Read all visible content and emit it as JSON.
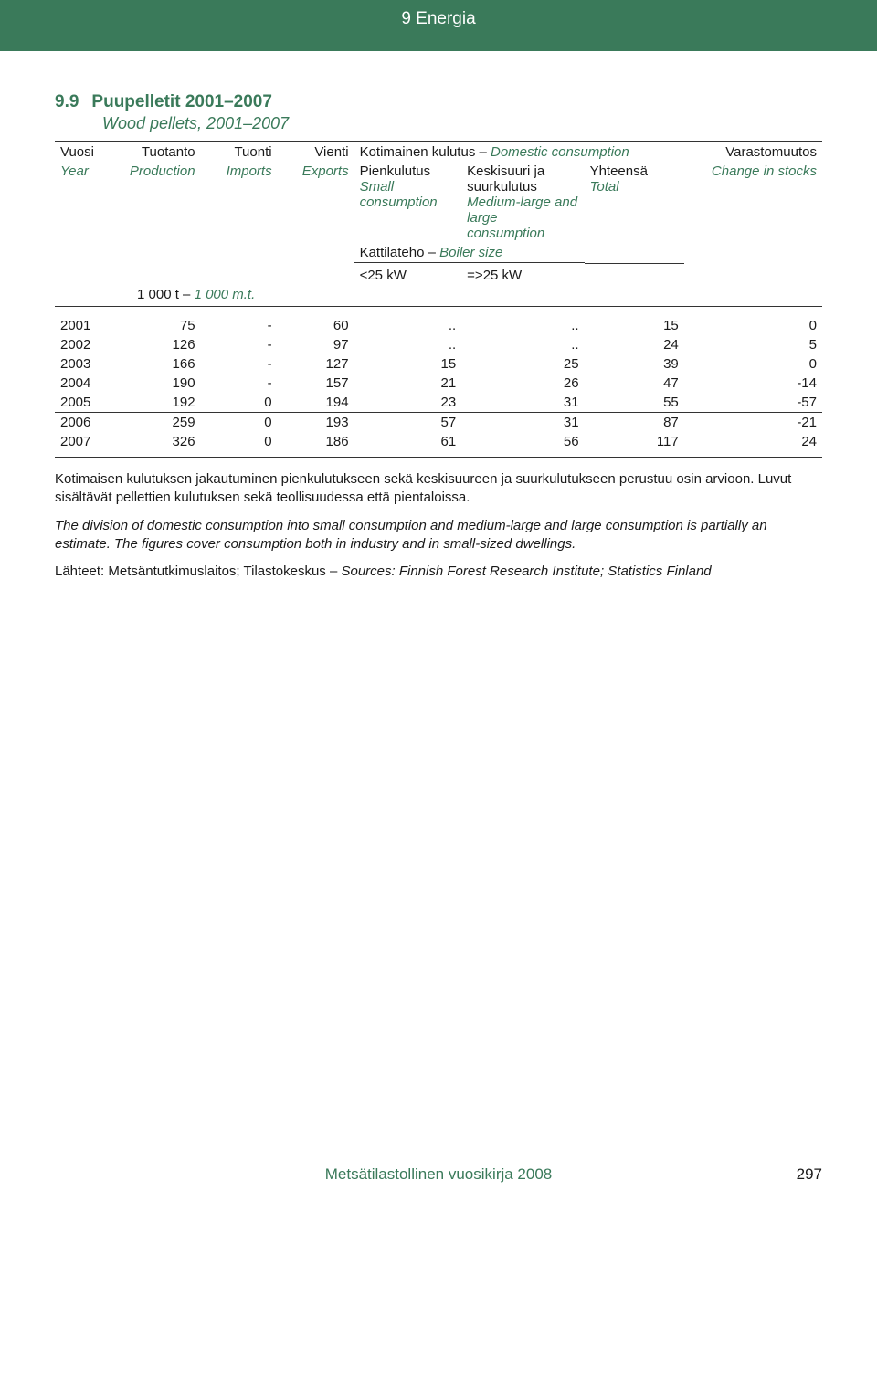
{
  "header": {
    "section": "9 Energia"
  },
  "title": {
    "num": "9.9",
    "fi": "Puupelletit 2001–2007",
    "en": "Wood pellets, 2001–2007"
  },
  "columns": {
    "c1": {
      "fi": "Vuosi",
      "en": "Year"
    },
    "c2": {
      "fi": "Tuotanto",
      "en": "Production"
    },
    "c3": {
      "fi": "Tuonti",
      "en": "Imports"
    },
    "c4": {
      "fi": "Vienti",
      "en": "Exports"
    },
    "group": {
      "fi": "Kotimainen kulutus – ",
      "en": "Domestic consumption"
    },
    "c5": {
      "fi": "Pienkulutus",
      "en": "Small consumption"
    },
    "c6": {
      "fi": "Keskisuuri ja suurkulutus",
      "en": "Medium-large and large consumption"
    },
    "c7": {
      "fi": "Yhteensä",
      "en": "Total"
    },
    "c8": {
      "fi": "Varastomuutos",
      "en": "Change in stocks"
    },
    "boiler": {
      "fi": "Kattilateho – ",
      "en": "Boiler size"
    },
    "kw1": "<25 kW",
    "kw2": "=>25 kW"
  },
  "unit": {
    "fi": "1 000 t – ",
    "en": "1 000 m.t."
  },
  "rows": [
    {
      "y": "2001",
      "prod": "75",
      "imp": "-",
      "exp": "60",
      "sm": "..",
      "ml": "..",
      "tot": "15",
      "chg": "0"
    },
    {
      "y": "2002",
      "prod": "126",
      "imp": "-",
      "exp": "97",
      "sm": "..",
      "ml": "..",
      "tot": "24",
      "chg": "5"
    },
    {
      "y": "2003",
      "prod": "166",
      "imp": "-",
      "exp": "127",
      "sm": "15",
      "ml": "25",
      "tot": "39",
      "chg": "0"
    },
    {
      "y": "2004",
      "prod": "190",
      "imp": "-",
      "exp": "157",
      "sm": "21",
      "ml": "26",
      "tot": "47",
      "chg": "-14"
    },
    {
      "y": "2005",
      "prod": "192",
      "imp": "0",
      "exp": "194",
      "sm": "23",
      "ml": "31",
      "tot": "55",
      "chg": "-57"
    },
    {
      "y": "2006",
      "prod": "259",
      "imp": "0",
      "exp": "193",
      "sm": "57",
      "ml": "31",
      "tot": "87",
      "chg": "-21"
    },
    {
      "y": "2007",
      "prod": "326",
      "imp": "0",
      "exp": "186",
      "sm": "61",
      "ml": "56",
      "tot": "117",
      "chg": "24"
    }
  ],
  "notes": {
    "p1": "Kotimaisen kulutuksen jakautuminen pienkulutukseen sekä keskisuureen ja suurkulutukseen perustuu osin arvioon. Luvut sisältävät pellettien kulutuksen sekä teollisuudessa että pientaloissa.",
    "p2": "The division of domestic consumption into small consumption and medium-large and large consumption is partially an estimate. The figures cover consumption both in industry and in small-sized dwellings.",
    "src_fi": "Lähteet: Metsäntutkimuslaitos; Tilastokeskus – ",
    "src_en": "Sources: Finnish Forest Research Institute; Statistics Finland"
  },
  "footer": {
    "book": "Metsätilastollinen vuosikirja 2008",
    "page": "297"
  },
  "colors": {
    "accent": "#3a7a5a",
    "text": "#1a1a1a",
    "bg": "#ffffff"
  }
}
